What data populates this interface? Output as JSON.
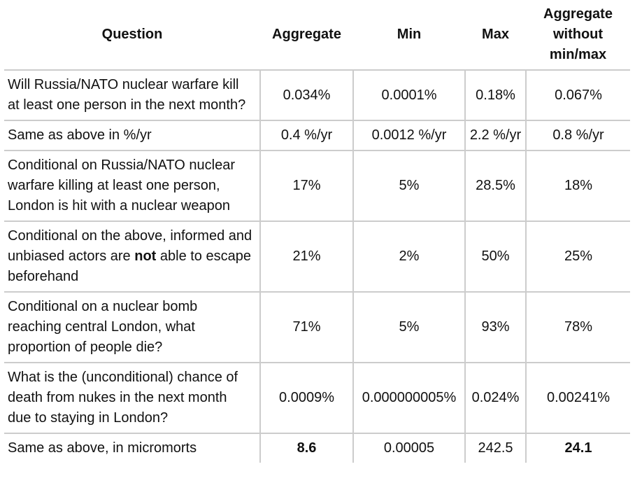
{
  "table": {
    "columns": [
      {
        "label": "Question"
      },
      {
        "label": "Aggregate"
      },
      {
        "label": "Min"
      },
      {
        "label": "Max"
      },
      {
        "label": "Aggregate without min/max"
      }
    ],
    "rows": [
      {
        "question": [
          {
            "text": "Will Russia/NATO nuclear warfare kill at least one person in the next month?"
          }
        ],
        "cells": [
          {
            "text": "0.034%"
          },
          {
            "text": "0.0001%"
          },
          {
            "text": "0.18%"
          },
          {
            "text": "0.067%"
          }
        ]
      },
      {
        "question": [
          {
            "text": "Same as above in %/yr"
          }
        ],
        "cells": [
          {
            "text": "0.4 %/yr"
          },
          {
            "text": "0.0012 %/yr"
          },
          {
            "text": "2.2 %/yr"
          },
          {
            "text": "0.8 %/yr"
          }
        ]
      },
      {
        "question": [
          {
            "text": "Conditional on Russia/NATO nuclear warfare killing at least one person, London is hit with a nuclear weapon"
          }
        ],
        "cells": [
          {
            "text": "17%"
          },
          {
            "text": "5%"
          },
          {
            "text": "28.5%"
          },
          {
            "text": "18%"
          }
        ]
      },
      {
        "question": [
          {
            "text": "Conditional on the above, informed and unbiased actors are "
          },
          {
            "text": "not",
            "bold": true
          },
          {
            "text": " able to escape beforehand"
          }
        ],
        "cells": [
          {
            "text": "21%"
          },
          {
            "text": "2%"
          },
          {
            "text": "50%"
          },
          {
            "text": "25%"
          }
        ]
      },
      {
        "question": [
          {
            "text": "Conditional on a nuclear bomb reaching central London, what proportion of people die?"
          }
        ],
        "cells": [
          {
            "text": "71%"
          },
          {
            "text": "5%"
          },
          {
            "text": "93%"
          },
          {
            "text": "78%"
          }
        ]
      },
      {
        "question": [
          {
            "text": "What is the (unconditional) chance of death from nukes in the next month due to staying in London?"
          }
        ],
        "cells": [
          {
            "text": "0.0009%"
          },
          {
            "text": "0.000000005%"
          },
          {
            "text": "0.024%"
          },
          {
            "text": "0.00241%"
          }
        ]
      },
      {
        "question": [
          {
            "text": "Same as above, in micromorts"
          }
        ],
        "cells": [
          {
            "text": "8.6",
            "bold": true
          },
          {
            "text": "0.00005"
          },
          {
            "text": "242.5"
          },
          {
            "text": "24.1",
            "bold": true
          }
        ]
      }
    ]
  }
}
